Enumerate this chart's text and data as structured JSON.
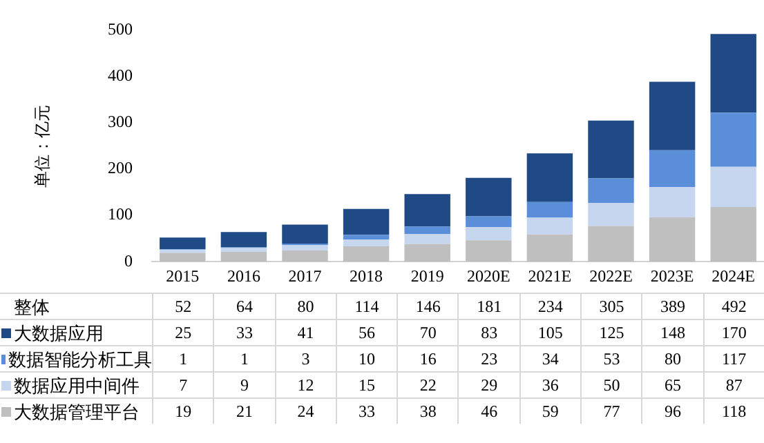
{
  "chart_data": {
    "type": "bar",
    "stacked": true,
    "ylabel": "单位：亿元",
    "categories": [
      "2015",
      "2016",
      "2017",
      "2018",
      "2019",
      "2020E",
      "2021E",
      "2022E",
      "2023E",
      "2024E"
    ],
    "series": [
      {
        "name": "大数据管理平台",
        "color": "#bfbfbf",
        "values": [
          19,
          21,
          24,
          33,
          38,
          46,
          59,
          77,
          96,
          118
        ]
      },
      {
        "name": "数据应用中间件",
        "color": "#c6d6ef",
        "values": [
          7,
          9,
          12,
          15,
          22,
          29,
          36,
          50,
          65,
          87
        ]
      },
      {
        "name": "数据智能分析工具",
        "color": "#5b8ed8",
        "values": [
          1,
          1,
          3,
          10,
          16,
          23,
          34,
          53,
          80,
          117
        ]
      },
      {
        "name": "大数据应用",
        "color": "#1f4a85",
        "values": [
          25,
          33,
          41,
          56,
          70,
          83,
          105,
          125,
          148,
          170
        ]
      }
    ],
    "annotations": [
      "整体"
    ],
    "totals": [
      "52",
      "64",
      "80",
      "114",
      "146",
      "181",
      "234",
      "305",
      "389",
      "492"
    ],
    "ylim": [
      0,
      500
    ],
    "yticks": [
      0,
      100,
      200,
      300,
      400,
      500
    ],
    "grid": false,
    "legend": "bottom",
    "data_labels": true
  }
}
